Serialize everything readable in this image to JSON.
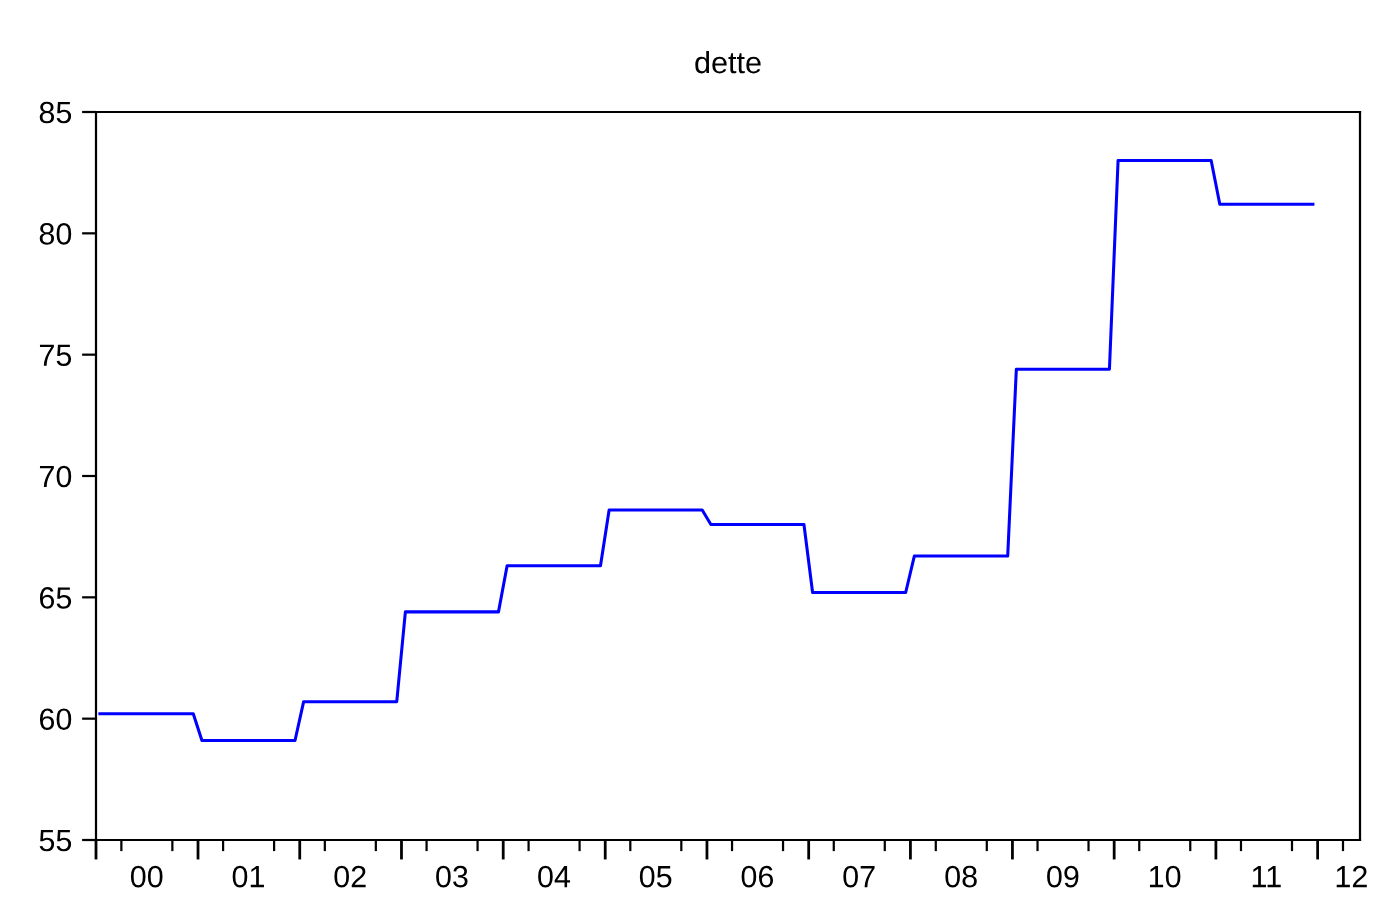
{
  "chart_data": {
    "type": "line",
    "title": "dette",
    "series": [
      {
        "color": "#0000ff",
        "x": [
          "2000-01-15",
          "2000-12-15",
          "2001-01-15",
          "2001-12-15",
          "2002-01-15",
          "2002-12-15",
          "2003-01-15",
          "2003-12-15",
          "2004-01-15",
          "2004-12-15",
          "2005-01-15",
          "2005-12-15",
          "2006-01-15",
          "2006-12-15",
          "2007-01-15",
          "2007-12-15",
          "2008-01-15",
          "2008-12-15",
          "2009-01-15",
          "2009-12-15",
          "2010-01-15",
          "2010-12-15",
          "2011-01-15",
          "2011-12-15"
        ],
        "values": [
          60.2,
          60.2,
          59.1,
          59.1,
          60.7,
          60.7,
          64.4,
          64.4,
          66.3,
          66.3,
          68.6,
          68.6,
          68.0,
          68.0,
          65.2,
          65.2,
          66.7,
          66.7,
          74.4,
          74.4,
          83.0,
          83.0,
          81.2,
          81.2
        ]
      }
    ],
    "xlim": [
      "2000-01-01",
      "2012-06-01"
    ],
    "xticks": [
      {
        "value": "2000-01-01",
        "label": null
      },
      {
        "value": "2000-04-01",
        "label": null
      },
      {
        "value": "2000-07-01",
        "label": "00"
      },
      {
        "value": "2000-10-01",
        "label": null
      },
      {
        "value": "2001-01-01",
        "label": null
      },
      {
        "value": "2001-04-01",
        "label": null
      },
      {
        "value": "2001-07-01",
        "label": "01"
      },
      {
        "value": "2001-10-01",
        "label": null
      },
      {
        "value": "2002-01-01",
        "label": null
      },
      {
        "value": "2002-04-01",
        "label": null
      },
      {
        "value": "2002-07-01",
        "label": "02"
      },
      {
        "value": "2002-10-01",
        "label": null
      },
      {
        "value": "2003-01-01",
        "label": null
      },
      {
        "value": "2003-04-01",
        "label": null
      },
      {
        "value": "2003-07-01",
        "label": "03"
      },
      {
        "value": "2003-10-01",
        "label": null
      },
      {
        "value": "2004-01-01",
        "label": null
      },
      {
        "value": "2004-04-01",
        "label": null
      },
      {
        "value": "2004-07-01",
        "label": "04"
      },
      {
        "value": "2004-10-01",
        "label": null
      },
      {
        "value": "2005-01-01",
        "label": null
      },
      {
        "value": "2005-04-01",
        "label": null
      },
      {
        "value": "2005-07-01",
        "label": "05"
      },
      {
        "value": "2005-10-01",
        "label": null
      },
      {
        "value": "2006-01-01",
        "label": null
      },
      {
        "value": "2006-04-01",
        "label": null
      },
      {
        "value": "2006-07-01",
        "label": "06"
      },
      {
        "value": "2006-10-01",
        "label": null
      },
      {
        "value": "2007-01-01",
        "label": null
      },
      {
        "value": "2007-04-01",
        "label": null
      },
      {
        "value": "2007-07-01",
        "label": "07"
      },
      {
        "value": "2007-10-01",
        "label": null
      },
      {
        "value": "2008-01-01",
        "label": null
      },
      {
        "value": "2008-04-01",
        "label": null
      },
      {
        "value": "2008-07-01",
        "label": "08"
      },
      {
        "value": "2008-10-01",
        "label": null
      },
      {
        "value": "2009-01-01",
        "label": null
      },
      {
        "value": "2009-04-01",
        "label": null
      },
      {
        "value": "2009-07-01",
        "label": "09"
      },
      {
        "value": "2009-10-01",
        "label": null
      },
      {
        "value": "2010-01-01",
        "label": null
      },
      {
        "value": "2010-04-01",
        "label": null
      },
      {
        "value": "2010-07-01",
        "label": "10"
      },
      {
        "value": "2010-10-01",
        "label": null
      },
      {
        "value": "2011-01-01",
        "label": null
      },
      {
        "value": "2011-04-01",
        "label": null
      },
      {
        "value": "2011-07-01",
        "label": "11"
      },
      {
        "value": "2011-10-01",
        "label": null
      },
      {
        "value": "2012-01-01",
        "label": null
      },
      {
        "value": "2012-04-01",
        "label": null
      },
      {
        "value": "2012-05-01",
        "label": "12"
      }
    ],
    "ylim": [
      55,
      85
    ],
    "yticks": [
      55,
      60,
      65,
      70,
      75,
      80,
      85
    ],
    "grid": false,
    "legend": false
  }
}
